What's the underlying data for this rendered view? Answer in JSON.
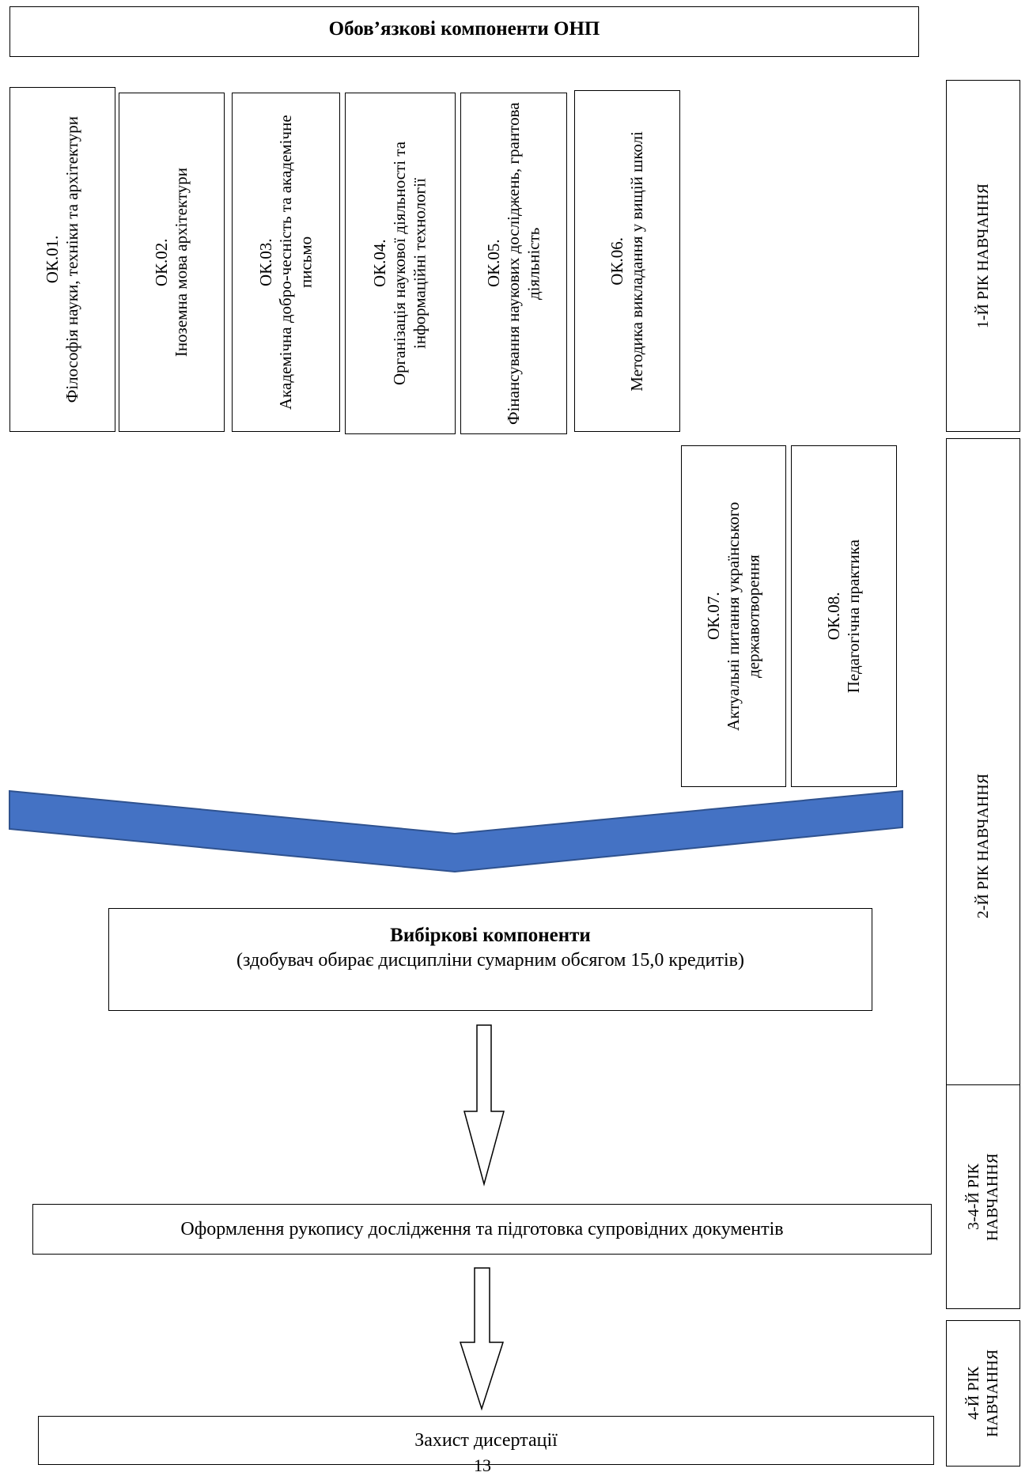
{
  "header": {
    "title": "Обов’язкові компоненти ОНП"
  },
  "mandatory_components": [
    {
      "code": "ОК.01.",
      "name": "Філософія науки, техніки та архітектури"
    },
    {
      "code": "ОК.02.",
      "name": "Іноземна мова архітектури"
    },
    {
      "code": "ОК.03.",
      "name": "Академічна добро-чесність та академічне письмо"
    },
    {
      "code": "ОК.04.",
      "name": "Організація наукової діяльності та інформаційні технології"
    },
    {
      "code": "ОК.05.",
      "name": "Фінансування наукових досліджень, грантова діяльність"
    },
    {
      "code": "ОК.06.",
      "name": "Методика викладання у вищій школі"
    },
    {
      "code": "ОК.07.",
      "name": "Актуальні питання українського державотворення"
    },
    {
      "code": "ОК.08.",
      "name": "Педагогічна практика"
    }
  ],
  "elective": {
    "title": "Вибіркові компоненти",
    "note": "(здобувач обирає дисципліни сумарним обсягом 15,0 кредитів)"
  },
  "manuscript": "Оформлення рукопису дослідження та підготовка супровідних документів",
  "defense": "Захист дисертації",
  "years": {
    "y1": "1-Й РІК НАВЧАННЯ",
    "y2": "2-Й РІК НАВЧАННЯ",
    "y34": "3-4-Й РІК\nНАВЧАННЯ",
    "y4": "4-Й РІК\nНАВЧАННЯ"
  },
  "page_number": "13",
  "colors": {
    "chevron_fill": "#4472C4",
    "chevron_stroke": "#2F528F"
  }
}
